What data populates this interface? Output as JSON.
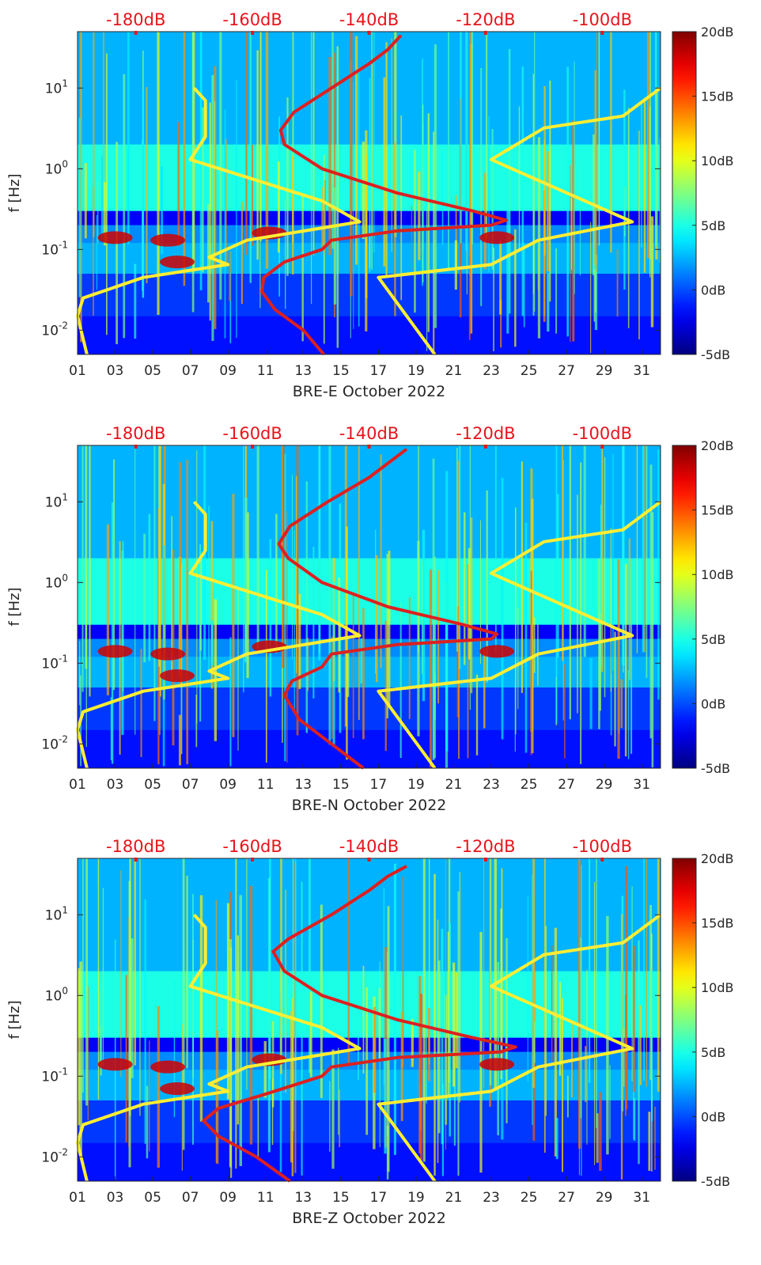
{
  "figure": {
    "colorbar_ticks": [
      "20dB",
      "15dB",
      "10dB",
      "5dB",
      "0dB",
      "-5dB"
    ],
    "top_axis_ticks": [
      "-180dB",
      "-160dB",
      "-140dB",
      "-120dB",
      "-100dB"
    ],
    "x_tick_labels": [
      "01",
      "03",
      "05",
      "07",
      "09",
      "11",
      "13",
      "15",
      "17",
      "19",
      "21",
      "23",
      "25",
      "27",
      "29",
      "31"
    ],
    "y_tick_labels": [
      {
        "base": "10",
        "exp": "1",
        "value": 10
      },
      {
        "base": "10",
        "exp": "0",
        "value": 1
      },
      {
        "base": "10",
        "exp": "-1",
        "value": 0.1
      },
      {
        "base": "10",
        "exp": "-2",
        "value": 0.01
      }
    ],
    "ylabel": "f [Hz]",
    "colors": {
      "red_curve": "#dd2020",
      "yellow_curve": "#ffee33",
      "top_axis_text": "#e8141b"
    }
  },
  "chart_data": [
    {
      "type": "heatmap",
      "title": "",
      "xlabel": "BRE-E October 2022",
      "ylabel": "f [Hz]",
      "x_range_day": [
        1,
        32
      ],
      "y_range_hz": [
        0.005,
        50
      ],
      "y_scale": "log",
      "color_range_db": [
        -5,
        20
      ],
      "colormap": "jet",
      "top_axis_range_db": [
        -190,
        -90
      ],
      "yellow_curve": [
        {
          "day": 1.5,
          "hz": 0.005
        },
        {
          "day": 1.0,
          "hz": 0.015
        },
        {
          "day": 1.3,
          "hz": 0.025
        },
        {
          "day": 4.5,
          "hz": 0.045
        },
        {
          "day": 9.0,
          "hz": 0.065
        },
        {
          "day": 8.0,
          "hz": 0.08
        },
        {
          "day": 10.0,
          "hz": 0.13
        },
        {
          "day": 16.0,
          "hz": 0.22
        },
        {
          "day": 14.0,
          "hz": 0.4
        },
        {
          "day": 7.0,
          "hz": 1.3
        },
        {
          "day": 7.8,
          "hz": 2.5
        },
        {
          "day": 7.8,
          "hz": 7.0
        },
        {
          "day": 7.2,
          "hz": 10
        },
        {
          "day": 17.0,
          "hz": 0.045
        },
        {
          "day": 23.0,
          "hz": 0.065
        },
        {
          "day": 25.5,
          "hz": 0.13
        },
        {
          "day": 30.5,
          "hz": 0.22
        },
        {
          "day": 23.0,
          "hz": 1.3
        },
        {
          "day": 25.8,
          "hz": 3.2
        },
        {
          "day": 30.0,
          "hz": 4.5
        },
        {
          "day": 32.0,
          "hz": 10
        },
        {
          "day": 20.0,
          "hz": 0.005
        }
      ],
      "red_curve": [
        {
          "day": 14.1,
          "hz": 0.005
        },
        {
          "day": 13.0,
          "hz": 0.01
        },
        {
          "day": 11.5,
          "hz": 0.018
        },
        {
          "day": 10.8,
          "hz": 0.03
        },
        {
          "day": 10.9,
          "hz": 0.045
        },
        {
          "day": 12.0,
          "hz": 0.07
        },
        {
          "day": 14.0,
          "hz": 0.1
        },
        {
          "day": 14.5,
          "hz": 0.13
        },
        {
          "day": 18.0,
          "hz": 0.17
        },
        {
          "day": 23.0,
          "hz": 0.2
        },
        {
          "day": 23.8,
          "hz": 0.23
        },
        {
          "day": 22.0,
          "hz": 0.3
        },
        {
          "day": 18.0,
          "hz": 0.5
        },
        {
          "day": 14.0,
          "hz": 1.0
        },
        {
          "day": 12.0,
          "hz": 2.0
        },
        {
          "day": 11.8,
          "hz": 3.0
        },
        {
          "day": 12.5,
          "hz": 5.0
        },
        {
          "day": 14.5,
          "hz": 10
        },
        {
          "day": 16.5,
          "hz": 20
        },
        {
          "day": 17.5,
          "hz": 30
        },
        {
          "day": 18.2,
          "hz": 45
        }
      ]
    },
    {
      "type": "heatmap",
      "title": "",
      "xlabel": "BRE-N October 2022",
      "ylabel": "f [Hz]",
      "x_range_day": [
        1,
        32
      ],
      "y_range_hz": [
        0.005,
        50
      ],
      "y_scale": "log",
      "color_range_db": [
        -5,
        20
      ],
      "colormap": "jet",
      "top_axis_range_db": [
        -190,
        -90
      ],
      "yellow_curve": [
        {
          "day": 1.5,
          "hz": 0.005
        },
        {
          "day": 1.0,
          "hz": 0.015
        },
        {
          "day": 1.3,
          "hz": 0.025
        },
        {
          "day": 4.5,
          "hz": 0.045
        },
        {
          "day": 9.0,
          "hz": 0.065
        },
        {
          "day": 8.0,
          "hz": 0.08
        },
        {
          "day": 10.0,
          "hz": 0.13
        },
        {
          "day": 16.0,
          "hz": 0.22
        },
        {
          "day": 14.0,
          "hz": 0.4
        },
        {
          "day": 7.0,
          "hz": 1.3
        },
        {
          "day": 7.8,
          "hz": 2.5
        },
        {
          "day": 7.8,
          "hz": 7.0
        },
        {
          "day": 7.2,
          "hz": 10
        },
        {
          "day": 17.0,
          "hz": 0.045
        },
        {
          "day": 23.0,
          "hz": 0.065
        },
        {
          "day": 25.5,
          "hz": 0.13
        },
        {
          "day": 30.5,
          "hz": 0.22
        },
        {
          "day": 23.0,
          "hz": 1.3
        },
        {
          "day": 25.8,
          "hz": 3.2
        },
        {
          "day": 30.0,
          "hz": 4.5
        },
        {
          "day": 32.0,
          "hz": 10
        },
        {
          "day": 20.0,
          "hz": 0.005
        }
      ],
      "red_curve": [
        {
          "day": 16.2,
          "hz": 0.005
        },
        {
          "day": 14.5,
          "hz": 0.01
        },
        {
          "day": 12.8,
          "hz": 0.02
        },
        {
          "day": 12.0,
          "hz": 0.04
        },
        {
          "day": 12.4,
          "hz": 0.06
        },
        {
          "day": 14.0,
          "hz": 0.09
        },
        {
          "day": 14.5,
          "hz": 0.13
        },
        {
          "day": 18.0,
          "hz": 0.17
        },
        {
          "day": 23.0,
          "hz": 0.2
        },
        {
          "day": 23.3,
          "hz": 0.23
        },
        {
          "day": 21.5,
          "hz": 0.3
        },
        {
          "day": 17.5,
          "hz": 0.5
        },
        {
          "day": 14.0,
          "hz": 1.0
        },
        {
          "day": 12.2,
          "hz": 2.0
        },
        {
          "day": 11.7,
          "hz": 3.0
        },
        {
          "day": 12.3,
          "hz": 5.0
        },
        {
          "day": 14.3,
          "hz": 10
        },
        {
          "day": 16.5,
          "hz": 20
        },
        {
          "day": 17.5,
          "hz": 30
        },
        {
          "day": 18.5,
          "hz": 45
        }
      ]
    },
    {
      "type": "heatmap",
      "title": "",
      "xlabel": "BRE-Z October 2022",
      "ylabel": "f [Hz]",
      "x_range_day": [
        1,
        32
      ],
      "y_range_hz": [
        0.005,
        50
      ],
      "y_scale": "log",
      "color_range_db": [
        -5,
        20
      ],
      "colormap": "jet",
      "top_axis_range_db": [
        -190,
        -90
      ],
      "yellow_curve": [
        {
          "day": 1.5,
          "hz": 0.005
        },
        {
          "day": 1.0,
          "hz": 0.015
        },
        {
          "day": 1.3,
          "hz": 0.025
        },
        {
          "day": 4.5,
          "hz": 0.045
        },
        {
          "day": 9.0,
          "hz": 0.065
        },
        {
          "day": 8.0,
          "hz": 0.08
        },
        {
          "day": 10.0,
          "hz": 0.13
        },
        {
          "day": 16.0,
          "hz": 0.22
        },
        {
          "day": 14.0,
          "hz": 0.4
        },
        {
          "day": 7.0,
          "hz": 1.3
        },
        {
          "day": 7.8,
          "hz": 2.5
        },
        {
          "day": 7.8,
          "hz": 7.0
        },
        {
          "day": 7.2,
          "hz": 10
        },
        {
          "day": 17.0,
          "hz": 0.045
        },
        {
          "day": 23.0,
          "hz": 0.065
        },
        {
          "day": 25.5,
          "hz": 0.13
        },
        {
          "day": 30.5,
          "hz": 0.22
        },
        {
          "day": 23.0,
          "hz": 1.3
        },
        {
          "day": 25.8,
          "hz": 3.2
        },
        {
          "day": 30.0,
          "hz": 4.5
        },
        {
          "day": 32.0,
          "hz": 10
        },
        {
          "day": 20.0,
          "hz": 0.005
        }
      ],
      "red_curve": [
        {
          "day": 12.3,
          "hz": 0.005
        },
        {
          "day": 10.5,
          "hz": 0.01
        },
        {
          "day": 8.5,
          "hz": 0.018
        },
        {
          "day": 7.7,
          "hz": 0.028
        },
        {
          "day": 8.5,
          "hz": 0.04
        },
        {
          "day": 11.0,
          "hz": 0.06
        },
        {
          "day": 14.0,
          "hz": 0.1
        },
        {
          "day": 14.5,
          "hz": 0.13
        },
        {
          "day": 18.0,
          "hz": 0.17
        },
        {
          "day": 23.5,
          "hz": 0.2
        },
        {
          "day": 24.3,
          "hz": 0.23
        },
        {
          "day": 22.0,
          "hz": 0.3
        },
        {
          "day": 18.0,
          "hz": 0.5
        },
        {
          "day": 14.0,
          "hz": 1.0
        },
        {
          "day": 12.0,
          "hz": 2.0
        },
        {
          "day": 11.4,
          "hz": 3.5
        },
        {
          "day": 12.2,
          "hz": 5.0
        },
        {
          "day": 14.5,
          "hz": 10
        },
        {
          "day": 16.5,
          "hz": 20
        },
        {
          "day": 17.5,
          "hz": 30
        },
        {
          "day": 18.5,
          "hz": 40
        }
      ]
    }
  ]
}
